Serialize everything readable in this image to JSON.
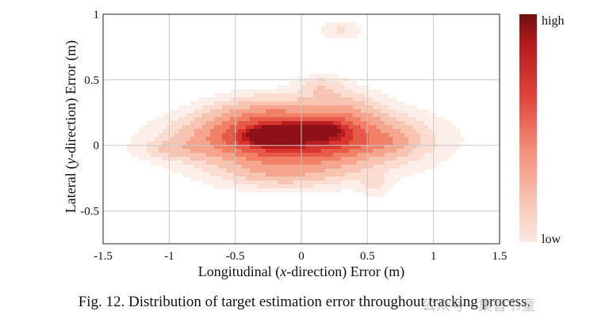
{
  "chart_data": {
    "type": "heatmap",
    "xlabel_parts": [
      "Longitudinal (",
      "x",
      "-direction) Error (m)"
    ],
    "ylabel_parts": [
      "Lateral (",
      "y",
      "-direction) Error (m)"
    ],
    "xlim": [
      -1.5,
      1.5
    ],
    "ylim": [
      -0.75,
      1.0
    ],
    "x_ticks": [
      -1.5,
      -1,
      -0.5,
      0,
      0.5,
      1,
      1.5
    ],
    "x_tick_labels": [
      "-1.5",
      "-1",
      "-0.5",
      "0",
      "0.5",
      "1",
      "1.5"
    ],
    "y_ticks": [
      1,
      0.5,
      0,
      -0.5
    ],
    "y_tick_labels": [
      "1",
      "0.5",
      "0",
      "-0.5"
    ],
    "grid": true,
    "colorbar": {
      "high_label": "high",
      "low_label": "low",
      "high_color": "#6e0f12",
      "low_color": "#fbe8e2"
    },
    "density_peak": {
      "x": -0.05,
      "y": 0.1
    },
    "density_blobs": [
      {
        "x": -0.05,
        "y": 0.1,
        "sx": 0.12,
        "sy": 0.035,
        "w": 1.0
      },
      {
        "x": -0.25,
        "y": 0.07,
        "sx": 0.1,
        "sy": 0.04,
        "w": 0.85
      },
      {
        "x": 0.15,
        "y": 0.12,
        "sx": 0.1,
        "sy": 0.04,
        "w": 0.6
      },
      {
        "x": -0.05,
        "y": 0.06,
        "sx": 0.42,
        "sy": 0.1,
        "w": 0.55
      },
      {
        "x": 0.0,
        "y": 0.03,
        "sx": 0.55,
        "sy": 0.17,
        "w": 0.28
      },
      {
        "x": -0.3,
        "y": 0.22,
        "sx": 0.25,
        "sy": 0.1,
        "w": 0.15
      },
      {
        "x": 0.3,
        "y": 0.25,
        "sx": 0.2,
        "sy": 0.12,
        "w": 0.12
      },
      {
        "x": -0.15,
        "y": -0.2,
        "sx": 0.3,
        "sy": 0.08,
        "w": 0.12
      },
      {
        "x": 0.15,
        "y": 0.45,
        "sx": 0.12,
        "sy": 0.06,
        "w": 0.08
      },
      {
        "x": 0.3,
        "y": 0.88,
        "sx": 0.1,
        "sy": 0.05,
        "w": 0.08
      },
      {
        "x": -0.95,
        "y": -0.03,
        "sx": 0.18,
        "sy": 0.05,
        "w": 0.08
      },
      {
        "x": 0.55,
        "y": -0.3,
        "sx": 0.08,
        "sy": 0.06,
        "w": 0.06
      },
      {
        "x": 0.7,
        "y": 0.02,
        "sx": 0.1,
        "sy": 0.05,
        "w": 0.06
      }
    ]
  },
  "caption": "Fig. 12. Distribution of target estimation error throughout tracking process.",
  "watermark": "公众号 · 集智书童"
}
